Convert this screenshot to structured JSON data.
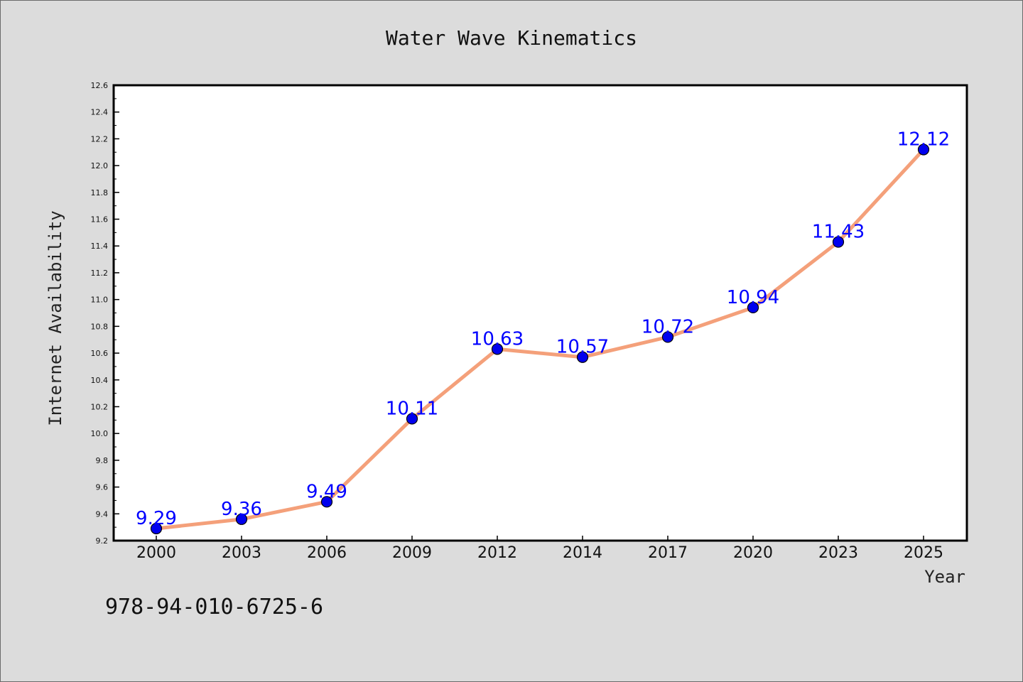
{
  "chart_data": {
    "type": "line",
    "title": "Water Wave Kinematics",
    "xlabel": "Year",
    "ylabel": "Internet Availability",
    "categories": [
      "2000",
      "2003",
      "2006",
      "2009",
      "2012",
      "2014",
      "2017",
      "2020",
      "2023",
      "2025"
    ],
    "series": [
      {
        "values": [
          9.29,
          9.36,
          9.49,
          10.11,
          10.63,
          10.57,
          10.72,
          10.94,
          11.43,
          12.12
        ]
      }
    ],
    "data_labels": [
      "9.29",
      "9.36",
      "9.49",
      "10.11",
      "10.63",
      "10.57",
      "10.72",
      "10.94",
      "11.43",
      "12.12"
    ],
    "ylim": [
      9.2,
      12.6
    ],
    "yticks": [
      "9.2",
      "9.4",
      "9.6",
      "9.8",
      "10.0",
      "10.2",
      "10.4",
      "10.6",
      "10.8",
      "11.0",
      "11.2",
      "11.4",
      "11.6",
      "11.8",
      "12.0",
      "12.2",
      "12.4",
      "12.6"
    ],
    "grid": false,
    "line_color": "#f4a07a",
    "marker_color": "#0000ee",
    "label_color": "#0000ff"
  },
  "footer": {
    "text": "978-94-010-6725-6"
  }
}
